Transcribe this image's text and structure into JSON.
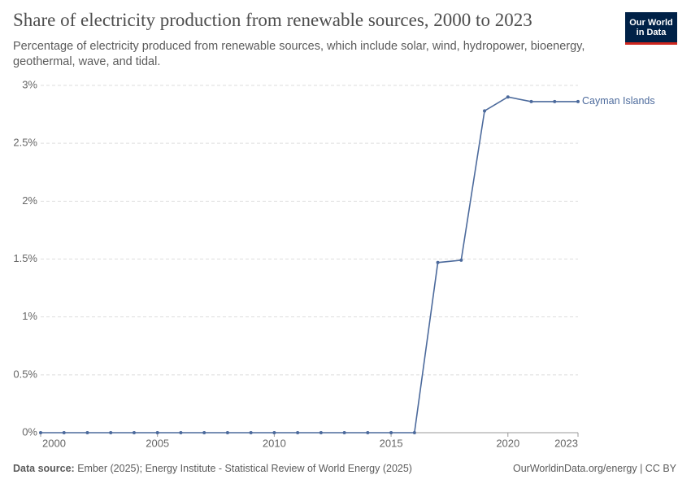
{
  "chart_data": {
    "type": "line",
    "title": "Share of electricity production from renewable sources, 2000 to 2023",
    "subtitle": "Percentage of electricity produced from renewable sources, which include solar, wind, hydropower, bioenergy, geothermal, wave, and tidal.",
    "logo": [
      "Our World",
      "in Data"
    ],
    "source_label": "Data source:",
    "source": "Ember (2025); Energy Institute - Statistical Review of World Energy (2025)",
    "credit": "OurWorldinData.org/energy | CC BY",
    "x": [
      2000,
      2001,
      2002,
      2003,
      2004,
      2005,
      2006,
      2007,
      2008,
      2009,
      2010,
      2011,
      2012,
      2013,
      2014,
      2015,
      2016,
      2017,
      2018,
      2019,
      2020,
      2021,
      2022,
      2023
    ],
    "series": [
      {
        "name": "Cayman Islands",
        "color": "#4c6a9c",
        "values": [
          0,
          0,
          0,
          0,
          0,
          0,
          0,
          0,
          0,
          0,
          0,
          0,
          0,
          0,
          0,
          0,
          0,
          1.47,
          1.49,
          2.78,
          2.9,
          2.86,
          2.86,
          2.86
        ]
      }
    ],
    "xlim": [
      2000,
      2023
    ],
    "xticks": [
      2000,
      2005,
      2010,
      2015,
      2020,
      2023
    ],
    "ylim": [
      0,
      3
    ],
    "yticks": [
      {
        "value": 0,
        "label": "0%"
      },
      {
        "value": 0.5,
        "label": "0.5%"
      },
      {
        "value": 1,
        "label": "1%"
      },
      {
        "value": 1.5,
        "label": "1.5%"
      },
      {
        "value": 2,
        "label": "2%"
      },
      {
        "value": 2.5,
        "label": "2.5%"
      },
      {
        "value": 3,
        "label": "3%"
      }
    ],
    "grid": true
  }
}
